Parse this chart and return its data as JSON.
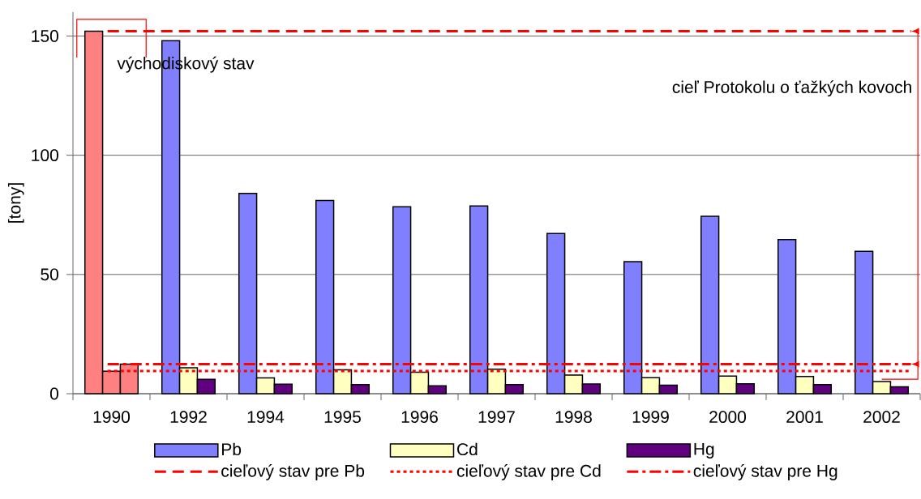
{
  "chart_data": {
    "type": "bar",
    "ylabel": "[tony]",
    "categories": [
      "1990",
      "1992",
      "1994",
      "1995",
      "1996",
      "1997",
      "1998",
      "1999",
      "2000",
      "2001",
      "2002"
    ],
    "series": [
      {
        "name": "Pb",
        "color": "#8080ff",
        "colors": [
          "#ff8080",
          "#8080ff",
          "#8080ff",
          "#8080ff",
          "#8080ff",
          "#8080ff",
          "#8080ff",
          "#8080ff",
          "#8080ff",
          "#8080ff",
          "#8080ff"
        ],
        "values": [
          152,
          148,
          84,
          81,
          78.4,
          78.7,
          67.2,
          55.4,
          74.4,
          64.6,
          59.7
        ]
      },
      {
        "name": "Cd",
        "color": "#ffffc0",
        "colors": [
          "#ff8080",
          "#ffffc0",
          "#ffffc0",
          "#ffffc0",
          "#ffffc0",
          "#ffffc0",
          "#ffffc0",
          "#ffffc0",
          "#ffffc0",
          "#ffffc0",
          "#ffffc0"
        ],
        "values": [
          9.4,
          10.9,
          6.6,
          10.0,
          9.0,
          10.3,
          7.8,
          6.7,
          7.4,
          7.2,
          5.1
        ]
      },
      {
        "name": "Hg",
        "color": "#600080",
        "colors": [
          "#ff8080",
          "#600080",
          "#600080",
          "#600080",
          "#600080",
          "#600080",
          "#600080",
          "#600080",
          "#600080",
          "#600080",
          "#600080"
        ],
        "values": [
          12.4,
          6.0,
          4.0,
          3.8,
          3.3,
          3.8,
          4.1,
          3.6,
          4.2,
          3.8,
          2.9
        ]
      }
    ],
    "ylim": [
      0,
      160
    ],
    "yticks": [
      0,
      50,
      100,
      150
    ],
    "grid": "y",
    "legend": "bottom",
    "ref_lines": [
      {
        "axis": "y",
        "value": 152,
        "label": "cieľový stav pre Pb",
        "color": "#ff0000",
        "line_style": "dashed"
      },
      {
        "axis": "y",
        "value": 9.5,
        "label": "cieľový stav pre Cd",
        "color": "#ff0000",
        "line_style": "dotted"
      },
      {
        "axis": "y",
        "value": 12.4,
        "label": "cieľový stav pre Hg",
        "color": "#ff0000",
        "line_style": "dashdot"
      }
    ],
    "annotations": [
      "východiskový stav",
      "cieľ Protokolu o ťažkých kovoch"
    ]
  }
}
